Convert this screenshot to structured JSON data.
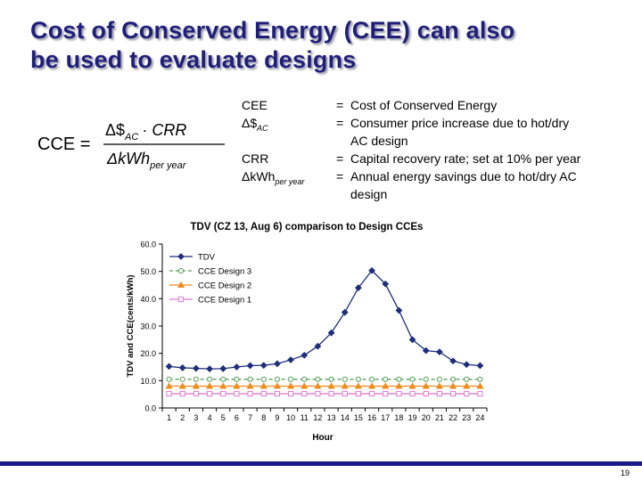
{
  "slide": {
    "title_line1": "Cost of Conserved Energy (CEE) can also",
    "title_line2": "be used to evaluate designs",
    "page_number": "19"
  },
  "formula": {
    "lhs": "CCE =",
    "num_a": "Δ$",
    "num_a_sub": "AC",
    "num_b": "· CRR",
    "den": "ΔkWh",
    "den_sub": "per year"
  },
  "definitions": [
    {
      "term": "CEE",
      "sub": "",
      "eq": "=",
      "text": "Cost of Conserved Energy",
      "cont": ""
    },
    {
      "term": "Δ$",
      "sub": "AC",
      "eq": "=",
      "text": "Consumer price increase due to hot/dry",
      "cont": "AC design"
    },
    {
      "term": "CRR",
      "sub": "",
      "eq": "=",
      "text": "Capital recovery rate; set at 10% per year",
      "cont": ""
    },
    {
      "term": "ΔkWh",
      "sub": "per year",
      "eq": "=",
      "text": "Annual energy savings due to hot/dry AC",
      "cont": "design"
    }
  ],
  "chart_data": {
    "type": "line",
    "title": "TDV (CZ 13, Aug 6) comparison to Design CCEs",
    "xlabel": "Hour",
    "ylabel": "TDV and CCE(cents/kWh)",
    "x": [
      1,
      2,
      3,
      4,
      5,
      6,
      7,
      8,
      9,
      10,
      11,
      12,
      13,
      14,
      15,
      16,
      17,
      18,
      19,
      20,
      21,
      22,
      23,
      24
    ],
    "ylim": [
      0,
      60
    ],
    "yticks": [
      "0.0",
      "10.0",
      "20.0",
      "30.0",
      "40.0",
      "50.0",
      "60.0"
    ],
    "grid": false,
    "legend_position": "top-left",
    "series": [
      {
        "name": "TDV",
        "color": "#1f2f7a",
        "marker": "diamond",
        "dash": "",
        "values": [
          15.2,
          14.7,
          14.5,
          14.3,
          14.4,
          15.0,
          15.5,
          15.6,
          16.2,
          17.6,
          19.3,
          22.6,
          27.5,
          35.0,
          44.0,
          50.3,
          45.4,
          35.7,
          25.0,
          21.0,
          20.5,
          17.2,
          15.9,
          15.5
        ]
      },
      {
        "name": "CCE Design 3",
        "color": "#5aa05a",
        "marker": "circle",
        "dash": "4,3",
        "values": [
          10.5,
          10.5,
          10.5,
          10.5,
          10.5,
          10.5,
          10.5,
          10.5,
          10.5,
          10.5,
          10.5,
          10.5,
          10.5,
          10.5,
          10.5,
          10.5,
          10.5,
          10.5,
          10.5,
          10.5,
          10.5,
          10.5,
          10.5,
          10.5
        ]
      },
      {
        "name": "CCE Design 2",
        "color": "#f08c1e",
        "marker": "triangle",
        "dash": "",
        "values": [
          8.0,
          8.0,
          8.0,
          8.0,
          8.0,
          8.0,
          8.0,
          8.0,
          8.0,
          8.0,
          8.0,
          8.0,
          8.0,
          8.0,
          8.0,
          8.0,
          8.0,
          8.0,
          8.0,
          8.0,
          8.0,
          8.0,
          8.0,
          8.0
        ]
      },
      {
        "name": "CCE Design 1",
        "color": "#e27ad2",
        "marker": "square",
        "dash": "",
        "values": [
          5.2,
          5.2,
          5.2,
          5.2,
          5.2,
          5.2,
          5.2,
          5.2,
          5.2,
          5.2,
          5.2,
          5.2,
          5.2,
          5.2,
          5.2,
          5.2,
          5.2,
          5.2,
          5.2,
          5.2,
          5.2,
          5.2,
          5.2,
          5.2
        ]
      }
    ]
  }
}
